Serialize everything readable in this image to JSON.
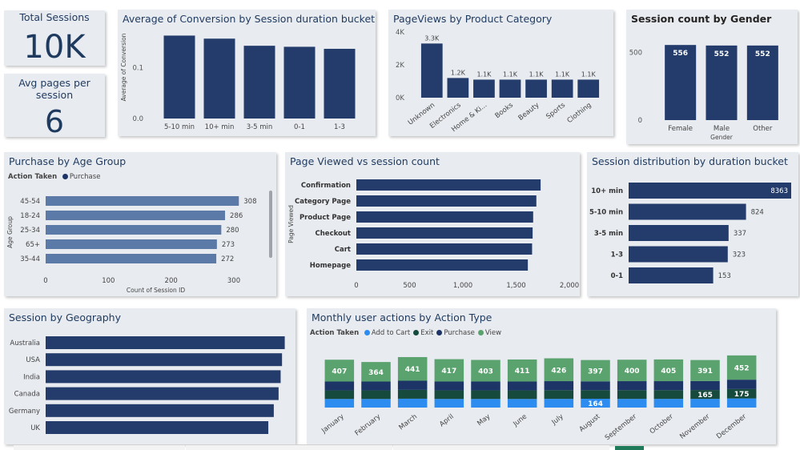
{
  "kpi_sessions": {
    "label": "Total Sessions",
    "value": "10K"
  },
  "kpi_pages": {
    "label": "Avg pages per session",
    "value": "6"
  },
  "conv": {
    "title": "Average of Conversion by Session duration bucket",
    "ylabel": "Average of Conversion",
    "yticks": [
      "0.1",
      "0.0"
    ],
    "chart_data": {
      "type": "bar",
      "categories": [
        "5-10 min",
        "10+ min",
        "3-5 min",
        "0-1",
        "1-3"
      ],
      "values": [
        0.163,
        0.157,
        0.143,
        0.141,
        0.137
      ],
      "ylim": [
        0,
        0.17
      ]
    }
  },
  "pageviews": {
    "title": "PageViews by Product Category",
    "yticks": [
      "4K",
      "2K",
      "0K"
    ],
    "chart_data": {
      "type": "bar",
      "categories": [
        "Unknown",
        "Electronics",
        "Home & Ki...",
        "Books",
        "Beauty",
        "Sports",
        "Clothing"
      ],
      "values": [
        3300,
        1200,
        1100,
        1100,
        1100,
        1100,
        1100
      ],
      "labels": [
        "3.3K",
        "1.2K",
        "1.1K",
        "1.1K",
        "1.1K",
        "1.1K",
        "1.1K"
      ],
      "ylim": [
        0,
        4000
      ]
    }
  },
  "gender": {
    "title": "Session count by Gender",
    "xlabel": "Gender",
    "yticks": [
      "500",
      "0"
    ],
    "chart_data": {
      "type": "bar",
      "categories": [
        "Female",
        "Male",
        "Other"
      ],
      "values": [
        556,
        552,
        552
      ],
      "ylim": [
        0,
        640
      ]
    }
  },
  "age": {
    "title": "Purchase by Age Group",
    "legend_title": "Action Taken",
    "legend_item": "Purchase",
    "ylabel": "Age Group",
    "xlabel": "Count of Session ID",
    "xticks": [
      "0",
      "100",
      "200",
      "300"
    ],
    "chart_data": {
      "type": "bar",
      "categories": [
        "45-54",
        "18-24",
        "25-34",
        "65+",
        "35-44"
      ],
      "values": [
        308,
        286,
        280,
        273,
        272
      ],
      "xlim": [
        0,
        300
      ]
    }
  },
  "pageviewed": {
    "title": "Page Viewed vs session count",
    "ylabel": "Page Viewed",
    "xticks": [
      "0",
      "500",
      "1,000",
      "1,500",
      "2,000"
    ],
    "chart_data": {
      "type": "bar",
      "categories": [
        "Confirmation",
        "Category Page",
        "Product Page",
        "Checkout",
        "Cart",
        "Homepage"
      ],
      "values": [
        1730,
        1690,
        1660,
        1655,
        1650,
        1610
      ],
      "xlim": [
        0,
        2000
      ]
    }
  },
  "duration": {
    "title": "Session distribution by duration bucket",
    "chart_data": {
      "type": "bar",
      "categories": [
        "10+ min",
        "5-10 min",
        "3-5 min",
        "1-3",
        "0-1"
      ],
      "values": [
        8363,
        824,
        337,
        323,
        153
      ]
    }
  },
  "geo": {
    "title": "Session by Geography",
    "chart_data": {
      "type": "bar",
      "categories": [
        "Australia",
        "USA",
        "India",
        "Canada",
        "Germany",
        "UK"
      ],
      "values": [
        1745,
        1725,
        1715,
        1700,
        1665,
        1625
      ],
      "xlim": [
        0,
        1800
      ]
    }
  },
  "monthly": {
    "title": "Monthly user actions by Action Type",
    "legend_title": "Action Taken",
    "chart_data": {
      "type": "bar",
      "categories": [
        "January",
        "February",
        "March",
        "April",
        "May",
        "June",
        "July",
        "August",
        "September",
        "October",
        "November",
        "December"
      ],
      "series": [
        {
          "name": "Add to Cart",
          "values": [
            160,
            160,
            165,
            160,
            160,
            160,
            162,
            164,
            162,
            162,
            162,
            170
          ]
        },
        {
          "name": "Exit",
          "values": [
            160,
            160,
            165,
            160,
            160,
            160,
            162,
            160,
            162,
            162,
            165,
            175
          ]
        },
        {
          "name": "Purchase",
          "values": [
            165,
            165,
            170,
            165,
            165,
            165,
            168,
            165,
            168,
            168,
            168,
            175
          ]
        },
        {
          "name": "View",
          "values": [
            407,
            364,
            441,
            417,
            403,
            411,
            426,
            397,
            400,
            405,
            391,
            452
          ]
        }
      ],
      "value_labels": [
        {
          "month": "January",
          "series": "View",
          "text": "407"
        },
        {
          "month": "February",
          "series": "View",
          "text": "364"
        },
        {
          "month": "March",
          "series": "View",
          "text": "441"
        },
        {
          "month": "April",
          "series": "View",
          "text": "417"
        },
        {
          "month": "May",
          "series": "View",
          "text": "403"
        },
        {
          "month": "June",
          "series": "View",
          "text": "411"
        },
        {
          "month": "July",
          "series": "View",
          "text": "426"
        },
        {
          "month": "August",
          "series": "View",
          "text": "397"
        },
        {
          "month": "August",
          "series": "Add to Cart",
          "text": "164"
        },
        {
          "month": "September",
          "series": "View",
          "text": "400"
        },
        {
          "month": "October",
          "series": "View",
          "text": "405"
        },
        {
          "month": "November",
          "series": "View",
          "text": "391"
        },
        {
          "month": "November",
          "series": "Exit",
          "text": "165"
        },
        {
          "month": "December",
          "series": "View",
          "text": "452"
        },
        {
          "month": "December",
          "series": "Exit",
          "text": "175"
        }
      ]
    }
  },
  "colors": {
    "navy": "#233c6b",
    "steel": "#5b7aa8",
    "add_to_cart": "#2d8cf0",
    "exit": "#164a3c",
    "purchase": "#1c3566",
    "view": "#5aa26e",
    "card": "#e8ebf0"
  }
}
